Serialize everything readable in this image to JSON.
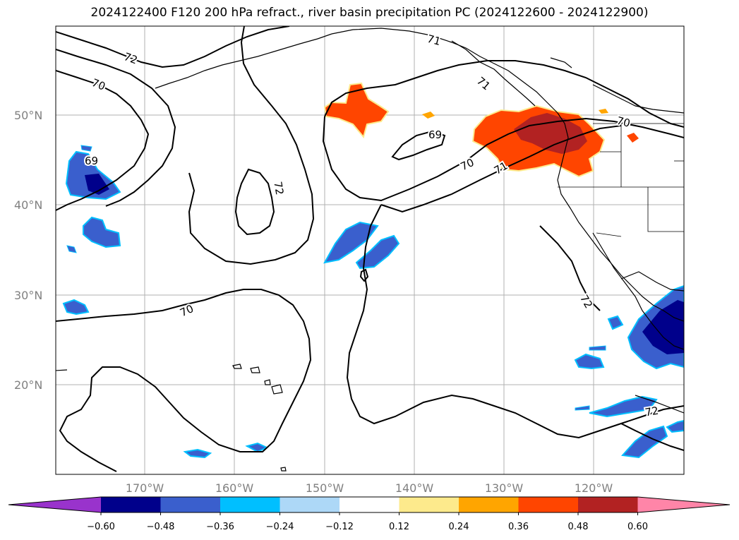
{
  "title": "2024122400 F120 200 hPa refract., river basin precipitation PC (2024122600 - 2024122900)",
  "lat_labels": [
    "50°N",
    "40°N",
    "30°N",
    "20°N"
  ],
  "lon_labels": [
    "170°W",
    "160°W",
    "150°W",
    "140°W",
    "130°W",
    "120°W"
  ],
  "contour_labels": [
    "72",
    "70",
    "69",
    "72",
    "71",
    "69",
    "70",
    "71",
    "70",
    "72",
    "70",
    "72",
    "71"
  ],
  "colorbar": {
    "ticks": [
      "−0.60",
      "−0.48",
      "−0.36",
      "−0.24",
      "−0.12",
      "0.12",
      "0.24",
      "0.36",
      "0.48",
      "0.60"
    ],
    "colors": [
      "#9933cc",
      "#00008b",
      "#3a5fcd",
      "#00bfff",
      "#add8f7",
      "#ffffff",
      "#fdea8c",
      "#ffa500",
      "#ff4500",
      "#b22222",
      "#ff85a8"
    ]
  },
  "colors": {
    "grid": "#b0b0b0",
    "contour": "#000000",
    "label": "#808080"
  }
}
